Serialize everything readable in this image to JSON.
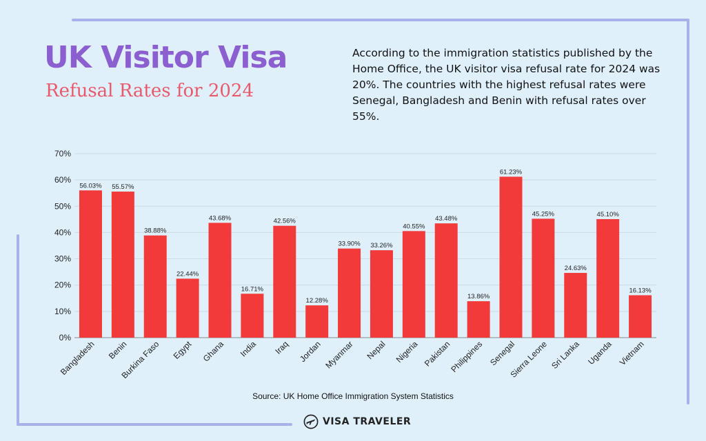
{
  "header": {
    "title": "UK Visitor Visa",
    "subtitle": "Refusal Rates for 2024"
  },
  "description": "According to the immigration statistics published by the Home Office, the UK visitor visa refusal rate for 2024 was 20%. The countries with the highest refusal rates were Senegal, Bangladesh and Benin with refusal rates over 55%.",
  "footer": {
    "source": "Source: UK Home Office Immigration System Statistics",
    "brand": "VISA TRAVELER",
    "brand_icon": "plane-icon"
  },
  "colors": {
    "background": "#dff0fb",
    "bar": "#f23a3a",
    "title": "#8c5fd0",
    "subtitle": "#e8596a",
    "frame": "#aab1ea"
  },
  "chart_data": {
    "type": "bar",
    "categories": [
      "Bangladesh",
      "Benin",
      "Burkina Faso",
      "Egypt",
      "Ghana",
      "India",
      "Iraq",
      "Jordan",
      "Myanmar",
      "Nepal",
      "Nigeria",
      "Pakistan",
      "Philippines",
      "Senegal",
      "Sierra Leone",
      "Sri Lanka",
      "Uganda",
      "Vietnam"
    ],
    "values": [
      56.03,
      55.57,
      38.88,
      22.44,
      43.68,
      16.71,
      42.56,
      12.28,
      33.9,
      33.26,
      40.55,
      43.48,
      13.86,
      61.23,
      45.25,
      24.63,
      45.1,
      16.13
    ],
    "data_labels": [
      "56.03%",
      "55.57%",
      "38.88%",
      "22.44%",
      "43.68%",
      "16.71%",
      "42.56%",
      "12.28%",
      "33.90%",
      "33.26%",
      "40.55%",
      "43.48%",
      "13.86%",
      "61.23%",
      "45.25%",
      "24.63%",
      "45.10%",
      "16.13%"
    ],
    "y_ticks": [
      0,
      10,
      20,
      30,
      40,
      50,
      60,
      70
    ],
    "y_tick_labels": [
      "0%",
      "10%",
      "20%",
      "30%",
      "40%",
      "50%",
      "60%",
      "70%"
    ],
    "ylim": [
      0,
      70
    ],
    "grid": true,
    "xlabel": "",
    "ylabel": ""
  }
}
